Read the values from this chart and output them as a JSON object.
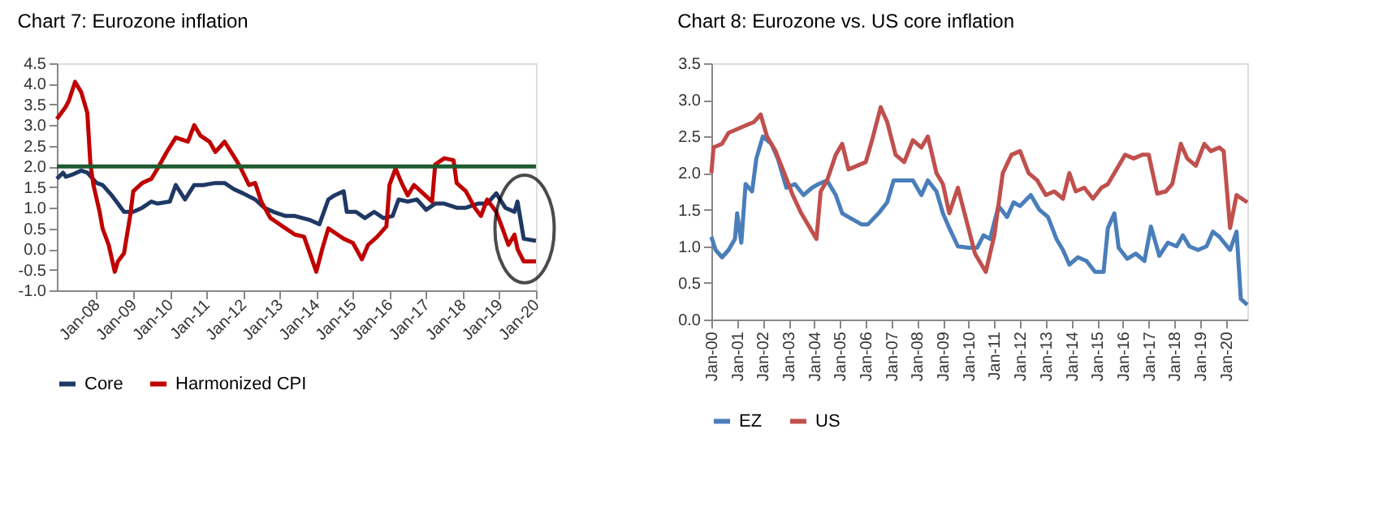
{
  "chart_data": [
    {
      "type": "line",
      "title": "Chart 7: Eurozone inflation",
      "legend": "bottom",
      "xlim": [
        "2006-12",
        "2020-01"
      ],
      "xticks": [
        {
          "value": "2008-01",
          "label": "Jan-08"
        },
        {
          "value": "2009-01",
          "label": "Jan-09"
        },
        {
          "value": "2010-01",
          "label": "Jan-10"
        },
        {
          "value": "2011-01",
          "label": "Jan-11"
        },
        {
          "value": "2012-01",
          "label": "Jan-12"
        },
        {
          "value": "2013-01",
          "label": "Jan-13"
        },
        {
          "value": "2014-01",
          "label": "Jan-14"
        },
        {
          "value": "2015-01",
          "label": "Jan-15"
        },
        {
          "value": "2016-01",
          "label": "Jan-16"
        },
        {
          "value": "2017-01",
          "label": "Jan-17"
        },
        {
          "value": "2018-01",
          "label": "Jan-18"
        },
        {
          "value": "2019-01",
          "label": "Jan-19"
        },
        {
          "value": "2020-01",
          "label": "Jan-20"
        }
      ],
      "ylim": [
        -1.0,
        4.5
      ],
      "yticks": [
        {
          "value": -1,
          "label": "-1.0"
        },
        -0.5,
        {
          "value": 0,
          "label": "0.0"
        },
        0.5,
        {
          "value": 1,
          "label": "1.0"
        },
        1.5,
        {
          "value": 2,
          "label": "2.0"
        },
        2.5,
        {
          "value": 3,
          "label": "3.0"
        },
        3.5,
        {
          "value": 4,
          "label": "4.0"
        },
        4.5
      ],
      "ref_lines": [
        {
          "axis": "y",
          "value": 2.0,
          "color": "#1e5b2e"
        }
      ],
      "series": [
        {
          "name": "Core",
          "color": "#1f3864",
          "x": [
            "2006-12",
            "2007-02",
            "2007-03",
            "2007-05",
            "2007-08",
            "2007-10",
            "2008-01",
            "2008-03",
            "2008-06",
            "2008-08",
            "2008-10",
            "2009-01",
            "2009-04",
            "2009-07",
            "2009-09",
            "2010-01",
            "2010-03",
            "2010-06",
            "2010-09",
            "2010-12",
            "2011-04",
            "2011-07",
            "2011-10",
            "2012-01",
            "2012-05",
            "2012-08",
            "2012-11",
            "2013-03",
            "2013-06",
            "2013-11",
            "2014-02",
            "2014-05",
            "2014-07",
            "2014-10",
            "2014-11",
            "2015-02",
            "2015-05",
            "2015-08",
            "2015-11",
            "2016-02",
            "2016-04",
            "2016-07",
            "2016-10",
            "2017-01",
            "2017-04",
            "2017-07",
            "2017-11",
            "2018-02",
            "2018-06",
            "2018-09",
            "2018-12",
            "2019-03",
            "2019-06",
            "2019-07",
            "2019-09",
            "2020-01"
          ],
          "values": [
            1.7,
            1.85,
            1.75,
            1.8,
            1.9,
            1.85,
            1.6,
            1.55,
            1.3,
            1.1,
            0.9,
            0.9,
            1.0,
            1.15,
            1.1,
            1.15,
            1.55,
            1.2,
            1.55,
            1.55,
            1.6,
            1.6,
            1.45,
            1.35,
            1.2,
            1.0,
            0.9,
            0.8,
            0.8,
            0.7,
            0.6,
            1.2,
            1.3,
            1.4,
            0.9,
            0.9,
            0.75,
            0.9,
            0.75,
            0.8,
            1.2,
            1.15,
            1.2,
            0.95,
            1.1,
            1.1,
            1.0,
            1.0,
            1.1,
            1.1,
            1.35,
            1.0,
            0.9,
            1.15,
            0.25,
            0.2
          ]
        },
        {
          "name": "Harmonized CPI",
          "color": "#c00000",
          "x": [
            "2006-12",
            "2007-03",
            "2007-04",
            "2007-06",
            "2007-08",
            "2007-10",
            "2007-11",
            "2007-12",
            "2008-02",
            "2008-03",
            "2008-05",
            "2008-07",
            "2008-08",
            "2008-10",
            "2008-12",
            "2009-01",
            "2009-04",
            "2009-07",
            "2009-09",
            "2009-12",
            "2010-03",
            "2010-05",
            "2010-07",
            "2010-09",
            "2010-11",
            "2011-02",
            "2011-04",
            "2011-07",
            "2011-10",
            "2011-12",
            "2012-03",
            "2012-05",
            "2012-07",
            "2012-10",
            "2012-12",
            "2013-03",
            "2013-06",
            "2013-09",
            "2014-01",
            "2014-03",
            "2014-05",
            "2014-08",
            "2014-10",
            "2015-01",
            "2015-04",
            "2015-06",
            "2015-09",
            "2015-12",
            "2016-01",
            "2016-03",
            "2016-05",
            "2016-07",
            "2016-09",
            "2016-12",
            "2017-03",
            "2017-04",
            "2017-07",
            "2017-10",
            "2017-11",
            "2018-02",
            "2018-05",
            "2018-07",
            "2018-09",
            "2018-11",
            "2018-12",
            "2019-02",
            "2019-04",
            "2019-06",
            "2019-07",
            "2019-09",
            "2020-01"
          ],
          "values": [
            3.15,
            3.45,
            3.6,
            4.05,
            3.8,
            3.3,
            2.05,
            1.55,
            0.9,
            0.5,
            0.1,
            -0.55,
            -0.3,
            -0.1,
            0.8,
            1.4,
            1.6,
            1.7,
            1.95,
            2.35,
            2.7,
            2.65,
            2.6,
            3.0,
            2.75,
            2.6,
            2.35,
            2.6,
            2.25,
            2.0,
            1.55,
            1.6,
            1.15,
            0.75,
            0.65,
            0.5,
            0.35,
            0.3,
            -0.55,
            0.0,
            0.5,
            0.35,
            0.25,
            0.15,
            -0.25,
            0.1,
            0.3,
            0.55,
            1.55,
            1.95,
            1.6,
            1.3,
            1.55,
            1.35,
            1.15,
            2.05,
            2.2,
            2.15,
            1.6,
            1.4,
            1.0,
            0.8,
            1.2,
            1.0,
            0.9,
            0.5,
            0.1,
            0.35,
            0.0,
            -0.3,
            -0.3
          ]
        }
      ]
    },
    {
      "type": "line",
      "title": "Chart 8: Eurozone vs. US core inflation",
      "legend": "bottom",
      "xlim": [
        "2000-01",
        "2020-11"
      ],
      "xticks": [
        {
          "value": "2000-01",
          "label": "Jan-00"
        },
        {
          "value": "2001-01",
          "label": "Jan-01"
        },
        {
          "value": "2002-01",
          "label": "Jan-02"
        },
        {
          "value": "2003-01",
          "label": "Jan-03"
        },
        {
          "value": "2004-01",
          "label": "Jan-04"
        },
        {
          "value": "2005-01",
          "label": "Jan-05"
        },
        {
          "value": "2006-01",
          "label": "Jan-06"
        },
        {
          "value": "2007-01",
          "label": "Jan-07"
        },
        {
          "value": "2008-01",
          "label": "Jan-08"
        },
        {
          "value": "2009-01",
          "label": "Jan-09"
        },
        {
          "value": "2010-01",
          "label": "Jan-10"
        },
        {
          "value": "2011-01",
          "label": "Jan-11"
        },
        {
          "value": "2012-01",
          "label": "Jan-12"
        },
        {
          "value": "2013-01",
          "label": "Jan-13"
        },
        {
          "value": "2014-01",
          "label": "Jan-14"
        },
        {
          "value": "2015-01",
          "label": "Jan-15"
        },
        {
          "value": "2016-01",
          "label": "Jan-16"
        },
        {
          "value": "2017-01",
          "label": "Jan-17"
        },
        {
          "value": "2018-01",
          "label": "Jan-18"
        },
        {
          "value": "2019-01",
          "label": "Jan-19"
        },
        {
          "value": "2020-01",
          "label": "Jan-20"
        }
      ],
      "ylim": [
        0.0,
        3.5
      ],
      "yticks": [
        {
          "value": 0,
          "label": "0.0"
        },
        0.5,
        {
          "value": 1,
          "label": "1.0"
        },
        1.5,
        {
          "value": 2,
          "label": "2.0"
        },
        2.5,
        {
          "value": 3,
          "label": "3.0"
        },
        3.5
      ],
      "series": [
        {
          "name": "EZ",
          "color": "#4a7ebb",
          "x": [
            "2000-01",
            "2000-03",
            "2000-06",
            "2000-09",
            "2000-12",
            "2001-01",
            "2001-03",
            "2001-05",
            "2001-08",
            "2001-10",
            "2002-01",
            "2002-05",
            "2002-08",
            "2002-12",
            "2003-04",
            "2003-08",
            "2003-12",
            "2004-03",
            "2004-07",
            "2004-11",
            "2005-02",
            "2005-05",
            "2005-11",
            "2006-02",
            "2006-07",
            "2006-11",
            "2007-02",
            "2007-07",
            "2007-11",
            "2008-03",
            "2008-06",
            "2008-10",
            "2009-01",
            "2009-04",
            "2009-08",
            "2010-01",
            "2010-05",
            "2010-08",
            "2010-11",
            "2011-03",
            "2011-07",
            "2011-10",
            "2012-01",
            "2012-06",
            "2012-10",
            "2013-02",
            "2013-06",
            "2013-09",
            "2013-12",
            "2014-04",
            "2014-08",
            "2014-12",
            "2015-04",
            "2015-06",
            "2015-09",
            "2015-11",
            "2016-03",
            "2016-07",
            "2016-11",
            "2017-02",
            "2017-06",
            "2017-10",
            "2018-02",
            "2018-05",
            "2018-08",
            "2018-12",
            "2019-04",
            "2019-07",
            "2019-10",
            "2020-03",
            "2020-06",
            "2020-08",
            "2020-11"
          ],
          "values": [
            1.13,
            0.95,
            0.85,
            0.95,
            1.1,
            1.45,
            1.05,
            1.85,
            1.75,
            2.2,
            2.5,
            2.4,
            2.2,
            1.8,
            1.85,
            1.7,
            1.8,
            1.85,
            1.9,
            1.7,
            1.45,
            1.4,
            1.3,
            1.3,
            1.45,
            1.6,
            1.9,
            1.9,
            1.9,
            1.7,
            1.9,
            1.75,
            1.45,
            1.25,
            1.0,
            0.98,
            0.98,
            1.15,
            1.1,
            1.55,
            1.4,
            1.6,
            1.55,
            1.7,
            1.5,
            1.4,
            1.1,
            0.95,
            0.75,
            0.85,
            0.8,
            0.65,
            0.65,
            1.25,
            1.45,
            0.98,
            0.83,
            0.9,
            0.8,
            1.27,
            0.87,
            1.05,
            1.0,
            1.15,
            1.0,
            0.95,
            1.0,
            1.2,
            1.13,
            0.95,
            1.2,
            0.28,
            0.2
          ]
        },
        {
          "name": "US",
          "color": "#c0504d",
          "x": [
            "2000-01",
            "2000-02",
            "2000-06",
            "2000-09",
            "2001-01",
            "2001-05",
            "2001-09",
            "2001-12",
            "2002-03",
            "2002-07",
            "2002-11",
            "2003-03",
            "2003-07",
            "2003-11",
            "2004-02",
            "2004-04",
            "2004-07",
            "2004-11",
            "2005-02",
            "2005-05",
            "2005-09",
            "2006-01",
            "2006-04",
            "2006-08",
            "2006-11",
            "2007-03",
            "2007-07",
            "2007-11",
            "2008-03",
            "2008-06",
            "2008-10",
            "2009-01",
            "2009-04",
            "2009-08",
            "2009-12",
            "2010-04",
            "2010-09",
            "2011-01",
            "2011-05",
            "2011-09",
            "2012-01",
            "2012-05",
            "2012-09",
            "2013-01",
            "2013-05",
            "2013-09",
            "2013-12",
            "2014-03",
            "2014-07",
            "2014-11",
            "2015-03",
            "2015-06",
            "2015-10",
            "2016-02",
            "2016-06",
            "2016-10",
            "2017-01",
            "2017-05",
            "2017-09",
            "2017-12",
            "2018-04",
            "2018-07",
            "2018-11",
            "2019-03",
            "2019-06",
            "2019-10",
            "2019-12",
            "2020-03",
            "2020-06",
            "2020-11"
          ],
          "values": [
            2.0,
            2.35,
            2.4,
            2.55,
            2.6,
            2.65,
            2.7,
            2.8,
            2.5,
            2.3,
            2.0,
            1.7,
            1.45,
            1.25,
            1.1,
            1.75,
            1.9,
            2.25,
            2.4,
            2.05,
            2.1,
            2.15,
            2.45,
            2.9,
            2.7,
            2.25,
            2.15,
            2.45,
            2.35,
            2.5,
            2.0,
            1.85,
            1.45,
            1.8,
            1.35,
            0.9,
            0.65,
            1.15,
            2.0,
            2.25,
            2.3,
            2.0,
            1.9,
            1.7,
            1.75,
            1.65,
            2.0,
            1.75,
            1.8,
            1.65,
            1.8,
            1.85,
            2.05,
            2.25,
            2.2,
            2.25,
            2.25,
            1.72,
            1.75,
            1.85,
            2.4,
            2.2,
            2.1,
            2.4,
            2.3,
            2.35,
            2.3,
            1.25,
            1.7,
            1.6
          ]
        }
      ]
    }
  ]
}
